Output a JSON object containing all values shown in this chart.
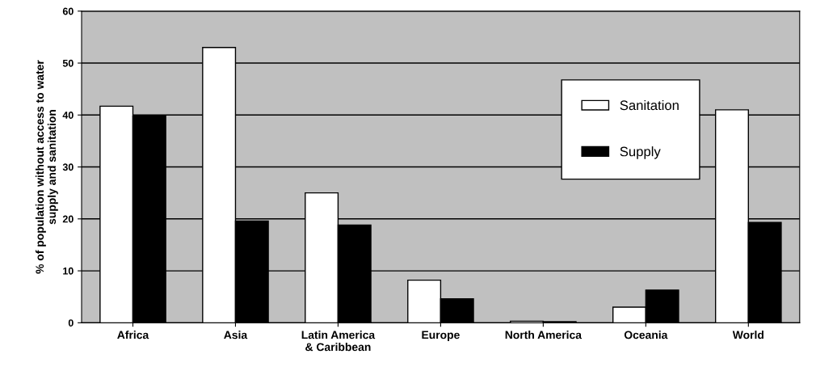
{
  "chart_data": {
    "type": "bar",
    "ylabel": "% of population without access to water\nsupply and sanitation",
    "categories": [
      "Africa",
      "Asia",
      "Latin America\n& Caribbean",
      "Europe",
      "North America",
      "Oceania",
      "World"
    ],
    "series": [
      {
        "name": "Sanitation",
        "color": "#ffffff",
        "values": [
          41.7,
          53,
          25,
          8.2,
          0.3,
          3,
          41
        ]
      },
      {
        "name": "Supply",
        "color": "#000000",
        "values": [
          39.8,
          19.6,
          18.8,
          4.6,
          0.2,
          6.3,
          19.3
        ]
      }
    ],
    "ylim": [
      0,
      60
    ],
    "yticks": [
      0,
      10,
      20,
      30,
      40,
      50,
      60
    ],
    "grid": "y",
    "legend": "right"
  }
}
